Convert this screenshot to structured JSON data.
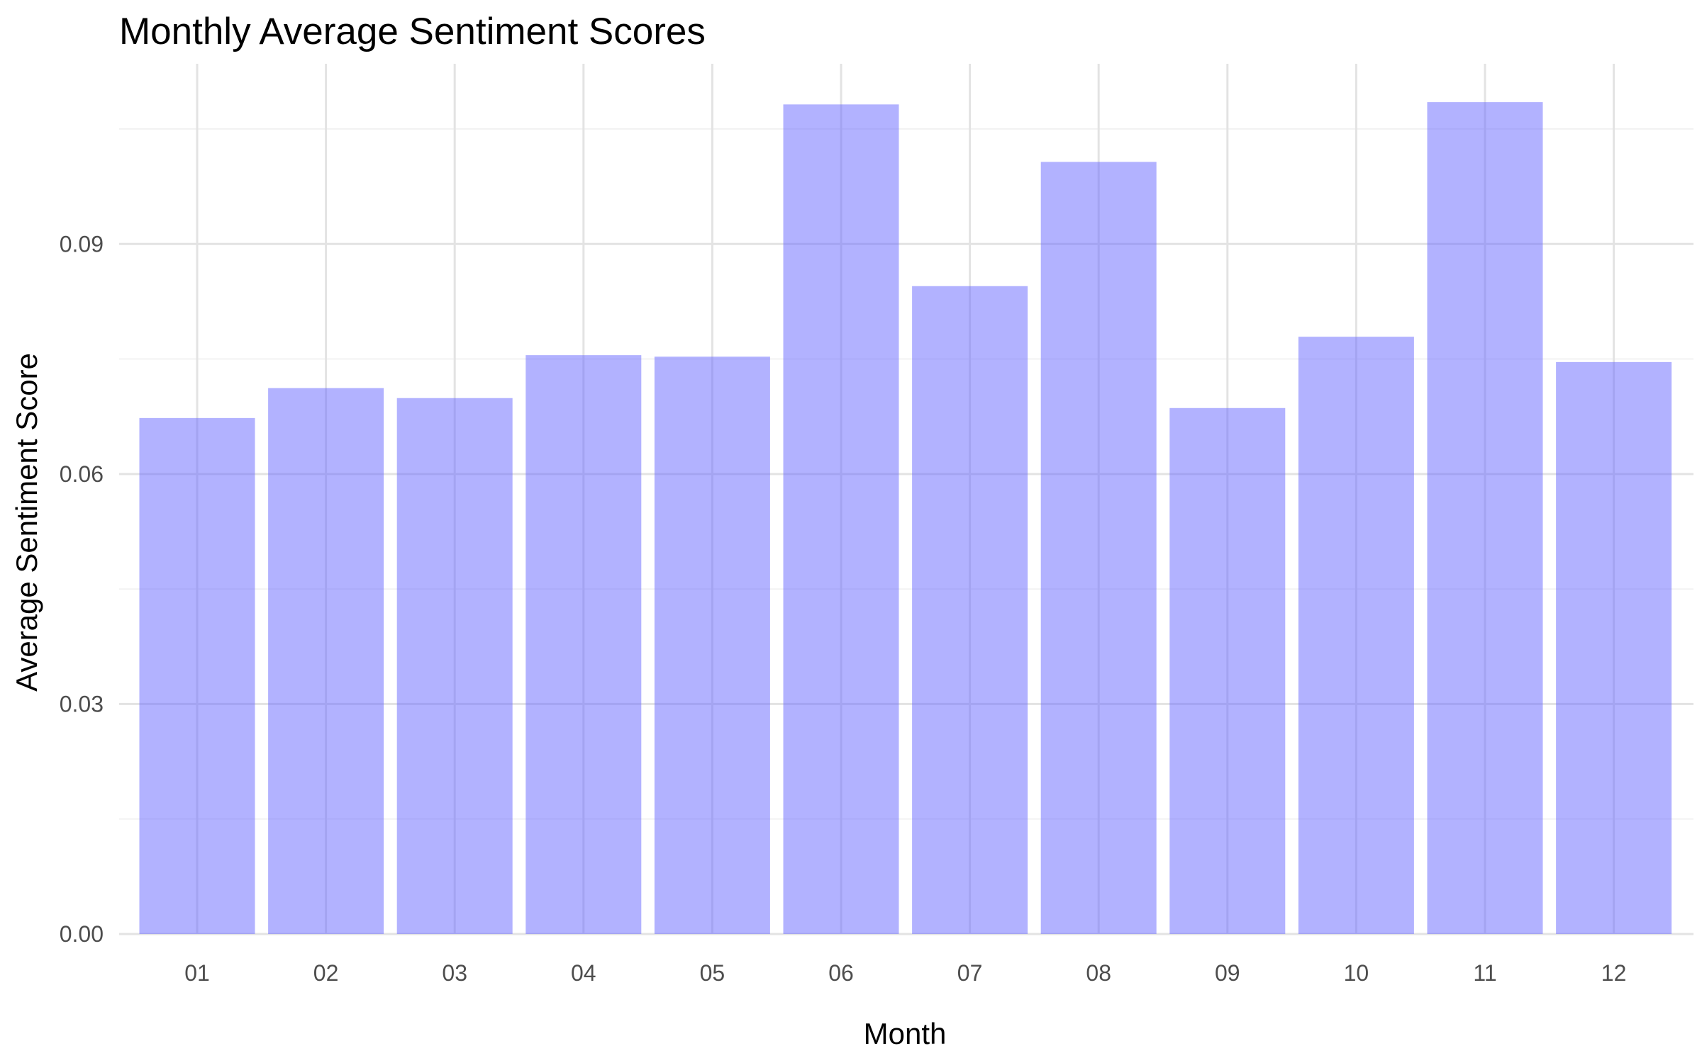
{
  "chart_data": {
    "type": "bar",
    "title": "Monthly Average Sentiment Scores",
    "xlabel": "Month",
    "ylabel": "Average Sentiment Score",
    "categories": [
      "01",
      "02",
      "03",
      "04",
      "05",
      "06",
      "07",
      "08",
      "09",
      "10",
      "11",
      "12"
    ],
    "values": [
      0.0673,
      0.0712,
      0.0699,
      0.0755,
      0.0753,
      0.1082,
      0.0845,
      0.1007,
      0.0686,
      0.0779,
      0.1085,
      0.0746
    ],
    "ylim": [
      0,
      0.1135
    ],
    "yticks": [
      0.0,
      0.03,
      0.06,
      0.09
    ],
    "ytick_labels": [
      "0.00",
      "0.03",
      "0.06",
      "0.09"
    ],
    "grid": true,
    "bar_color": "#6666ff",
    "bar_opacity": 0.5
  }
}
